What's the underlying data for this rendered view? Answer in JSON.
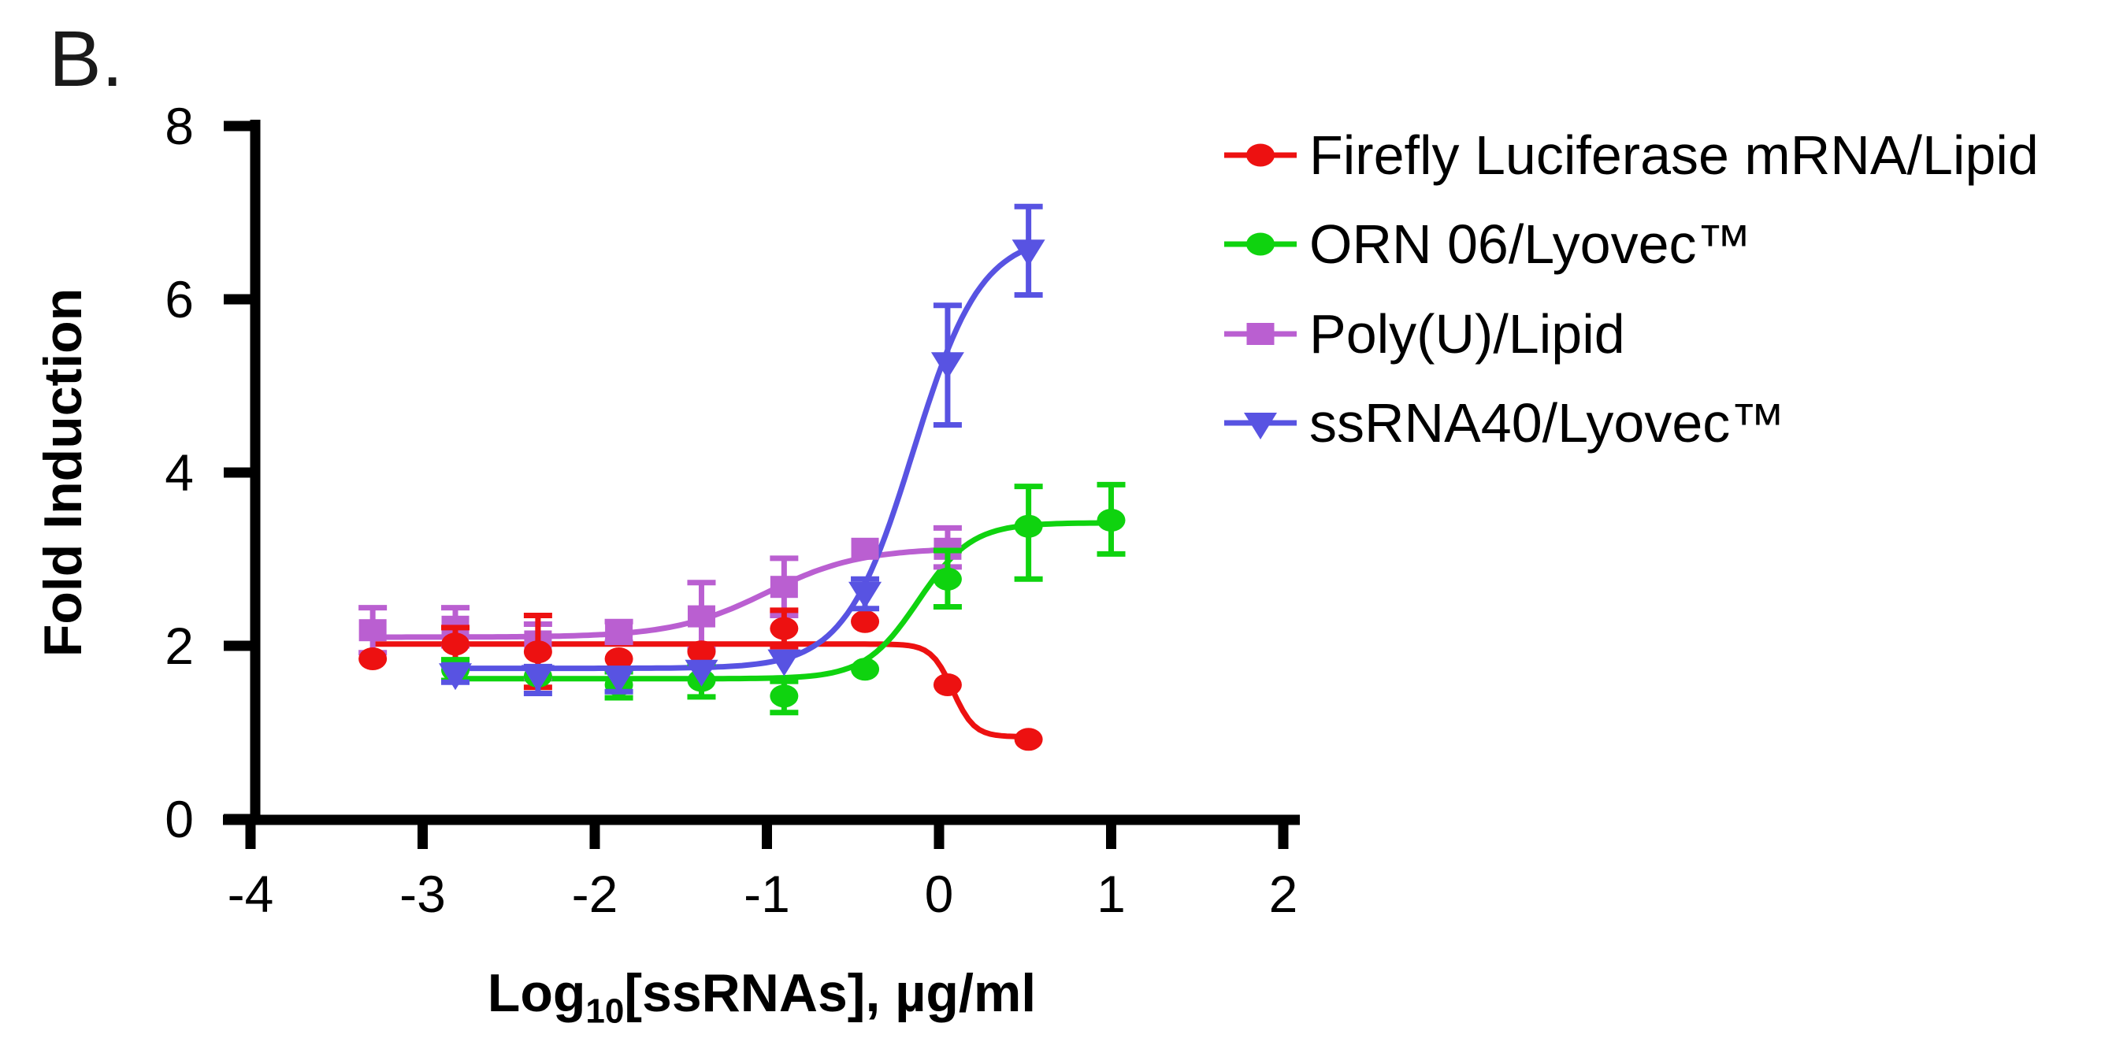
{
  "figure": {
    "panel_label": "B."
  },
  "chart_data": {
    "type": "line",
    "title": "",
    "xlabel": {
      "prefix": "Log",
      "sub": "10",
      "suffix": "[ssRNAs], µg/ml"
    },
    "ylabel": "Fold Induction",
    "axes": {
      "xlim": [
        -4,
        2
      ],
      "ylim": [
        0,
        8
      ],
      "xticks": [
        "-4",
        "-3",
        "-2",
        "-1",
        "0",
        "1",
        "2"
      ],
      "xtick_values": [
        -4,
        -3,
        -2,
        -1,
        0,
        1,
        2
      ],
      "yticks": [
        "0",
        "2",
        "4",
        "6",
        "8"
      ],
      "ytick_values": [
        0,
        2,
        4,
        6,
        8
      ],
      "grid": "off",
      "axis_color": "#000000"
    },
    "legend_position": "right-top",
    "series": [
      {
        "name": "Poly(U)/Lipid",
        "color": "#BA5FD1",
        "marker": "square",
        "x": [
          -3.29,
          -2.81,
          -2.33,
          -1.86,
          -1.38,
          -0.9,
          -0.43,
          0.05
        ],
        "y": [
          2.18,
          2.22,
          2.05,
          2.16,
          2.34,
          2.68,
          3.12,
          3.12
        ],
        "err_up": [
          0.26,
          0.22,
          0.2,
          0.12,
          0.39,
          0.33,
          null,
          0.24
        ],
        "err_dn": [
          0.26,
          0.22,
          0.42,
          0.12,
          0.38,
          0.33,
          null,
          0.21
        ],
        "fit": {
          "bottom": 2.1,
          "top": 3.13,
          "x50": -1.0,
          "hill": -1.6,
          "range": [
            -3.29,
            0.05
          ]
        },
        "legend_order": 3
      },
      {
        "name": "Firefly Luciferase mRNA/Lipid",
        "color": "#ED1111",
        "marker": "circle",
        "x": [
          -3.29,
          -2.81,
          -2.33,
          -1.86,
          -1.38,
          -0.9,
          -0.43,
          0.05,
          0.52
        ],
        "y": [
          1.85,
          2.02,
          1.93,
          1.85,
          1.93,
          2.2,
          2.28,
          1.55,
          0.92
        ],
        "err_up": [
          null,
          0.19,
          0.42,
          null,
          null,
          0.21,
          null,
          null,
          null
        ],
        "err_dn": [
          null,
          0.19,
          0.41,
          null,
          null,
          0.21,
          null,
          null,
          null
        ],
        "fit": {
          "bottom": 0.95,
          "top": 2.02,
          "x50": 0.08,
          "hill": 7,
          "range": [
            -3.29,
            0.52
          ]
        },
        "legend_order": 1
      },
      {
        "name": "ORN 06/Lyovec™",
        "color": "#0FD30F",
        "marker": "circle",
        "x": [
          -2.81,
          -2.33,
          -1.86,
          -1.38,
          -0.9,
          -0.43,
          0.05,
          0.52,
          1.0
        ],
        "y": [
          1.72,
          1.65,
          1.55,
          1.6,
          1.42,
          1.73,
          2.77,
          3.38,
          3.45
        ],
        "err_up": [
          0.12,
          null,
          0.15,
          0.2,
          0.17,
          null,
          0.33,
          0.46,
          0.41
        ],
        "err_dn": [
          0.12,
          null,
          0.15,
          0.19,
          0.19,
          null,
          0.32,
          0.61,
          0.39
        ],
        "fit": {
          "bottom": 1.62,
          "top": 3.42,
          "x50": -0.12,
          "hill": -2.8,
          "range": [
            -2.81,
            1.0
          ]
        },
        "legend_order": 2
      },
      {
        "name": "ssRNA40/Lyovec™",
        "color": "#5853E2",
        "marker": "triangle-down",
        "x": [
          -2.81,
          -2.33,
          -1.86,
          -1.38,
          -0.9,
          -0.43,
          0.05,
          0.52
        ],
        "y": [
          1.68,
          1.66,
          1.64,
          1.72,
          1.84,
          2.62,
          5.27,
          6.57
        ],
        "err_up": [
          0.1,
          0.1,
          0.1,
          null,
          null,
          0.15,
          0.66,
          0.5
        ],
        "err_dn": [
          0.1,
          0.21,
          0.17,
          null,
          null,
          0.19,
          0.72,
          0.52
        ],
        "fit": {
          "bottom": 1.74,
          "top": 6.75,
          "x50": -0.15,
          "hill": -2.2,
          "range": [
            -2.81,
            0.52
          ]
        },
        "legend_order": 4
      }
    ]
  }
}
